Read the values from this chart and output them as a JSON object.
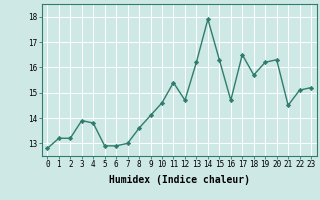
{
  "x": [
    0,
    1,
    2,
    3,
    4,
    5,
    6,
    7,
    8,
    9,
    10,
    11,
    12,
    13,
    14,
    15,
    16,
    17,
    18,
    19,
    20,
    21,
    22,
    23
  ],
  "y": [
    12.8,
    13.2,
    13.2,
    13.9,
    13.8,
    12.9,
    12.9,
    13.0,
    13.6,
    14.1,
    14.6,
    15.4,
    14.7,
    16.2,
    17.9,
    16.3,
    14.7,
    16.5,
    15.7,
    16.2,
    16.3,
    14.5,
    15.1,
    15.2
  ],
  "line_color": "#2e7d6e",
  "marker": "D",
  "marker_size": 2.2,
  "bg_color": "#cde8e5",
  "grid_color": "#ffffff",
  "xlabel": "Humidex (Indice chaleur)",
  "xlim": [
    -0.5,
    23.5
  ],
  "ylim": [
    12.5,
    18.5
  ],
  "yticks": [
    13,
    14,
    15,
    16,
    17,
    18
  ],
  "xticks": [
    0,
    1,
    2,
    3,
    4,
    5,
    6,
    7,
    8,
    9,
    10,
    11,
    12,
    13,
    14,
    15,
    16,
    17,
    18,
    19,
    20,
    21,
    22,
    23
  ],
  "xtick_labels": [
    "0",
    "1",
    "2",
    "3",
    "4",
    "5",
    "6",
    "7",
    "8",
    "9",
    "10",
    "11",
    "12",
    "13",
    "14",
    "15",
    "16",
    "17",
    "18",
    "19",
    "20",
    "21",
    "22",
    "23"
  ],
  "line_width": 1.0,
  "xlabel_fontsize": 7,
  "tick_fontsize": 5.5
}
